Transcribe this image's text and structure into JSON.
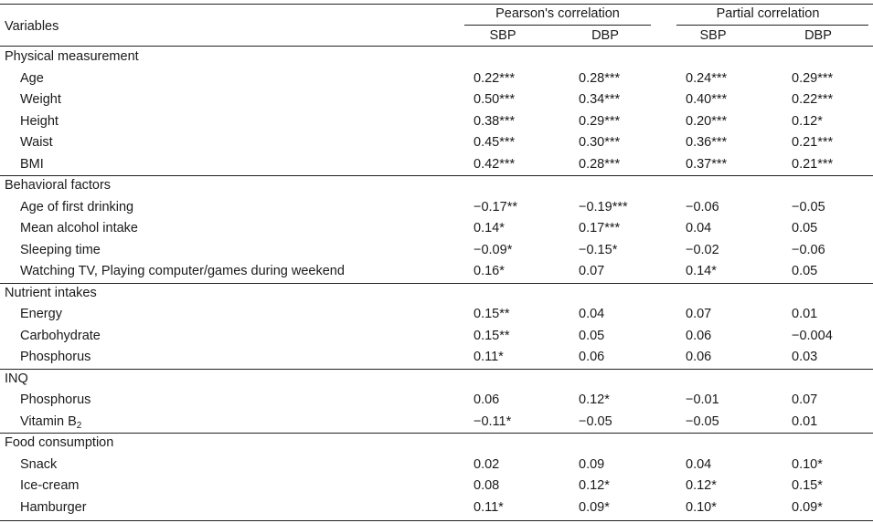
{
  "header": {
    "variables": "Variables",
    "group1": "Pearson's correlation",
    "group2": "Partial correlation",
    "sub": [
      "SBP",
      "DBP",
      "SBP",
      "DBP"
    ]
  },
  "sections": [
    {
      "title": "Physical measurement",
      "rows": [
        {
          "label": "Age",
          "values": [
            "0.22***",
            "0.28***",
            "0.24***",
            "0.29***"
          ]
        },
        {
          "label": "Weight",
          "values": [
            "0.50***",
            "0.34***",
            "0.40***",
            "0.22***"
          ]
        },
        {
          "label": "Height",
          "values": [
            "0.38***",
            "0.29***",
            "0.20***",
            "0.12*"
          ]
        },
        {
          "label": "Waist",
          "values": [
            "0.45***",
            "0.30***",
            "0.36***",
            "0.21***"
          ]
        },
        {
          "label": "BMI",
          "values": [
            "0.42***",
            "0.28***",
            "0.37***",
            "0.21***"
          ]
        }
      ]
    },
    {
      "title": "Behavioral factors",
      "rows": [
        {
          "label": "Age of first drinking",
          "values": [
            "−0.17**",
            "−0.19***",
            "−0.06",
            "−0.05"
          ]
        },
        {
          "label": "Mean alcohol intake",
          "values": [
            "0.14*",
            "0.17***",
            "0.04",
            "0.05"
          ]
        },
        {
          "label": "Sleeping time",
          "values": [
            "−0.09*",
            "−0.15*",
            "−0.02",
            "−0.06"
          ]
        },
        {
          "label": "Watching TV, Playing computer/games during weekend",
          "values": [
            "0.16*",
            "0.07",
            "0.14*",
            "0.05"
          ]
        }
      ]
    },
    {
      "title": "Nutrient intakes",
      "rows": [
        {
          "label": "Energy",
          "values": [
            "0.15**",
            "0.04",
            "0.07",
            "0.01"
          ]
        },
        {
          "label": "Carbohydrate",
          "values": [
            "0.15**",
            "0.05",
            "0.06",
            "−0.004"
          ]
        },
        {
          "label": "Phosphorus",
          "values": [
            "0.11*",
            "0.06",
            "0.06",
            "0.03"
          ]
        }
      ]
    },
    {
      "title": "INQ",
      "rows": [
        {
          "label": "Phosphorus",
          "values": [
            "0.06",
            "0.12*",
            "−0.01",
            "0.07"
          ]
        },
        {
          "label": "Vitamin B",
          "label_sub": "2",
          "values": [
            "−0.11*",
            "−0.05",
            "−0.05",
            "0.01"
          ]
        }
      ]
    },
    {
      "title": "Food consumption",
      "rows": [
        {
          "label": "Snack",
          "values": [
            "0.02",
            "0.09",
            "0.04",
            "0.10*"
          ]
        },
        {
          "label": "Ice-cream",
          "values": [
            "0.08",
            "0.12*",
            "0.12*",
            "0.15*"
          ]
        },
        {
          "label": "Hamburger",
          "values": [
            "0.11*",
            "0.09*",
            "0.10*",
            "0.09*"
          ]
        }
      ]
    }
  ]
}
